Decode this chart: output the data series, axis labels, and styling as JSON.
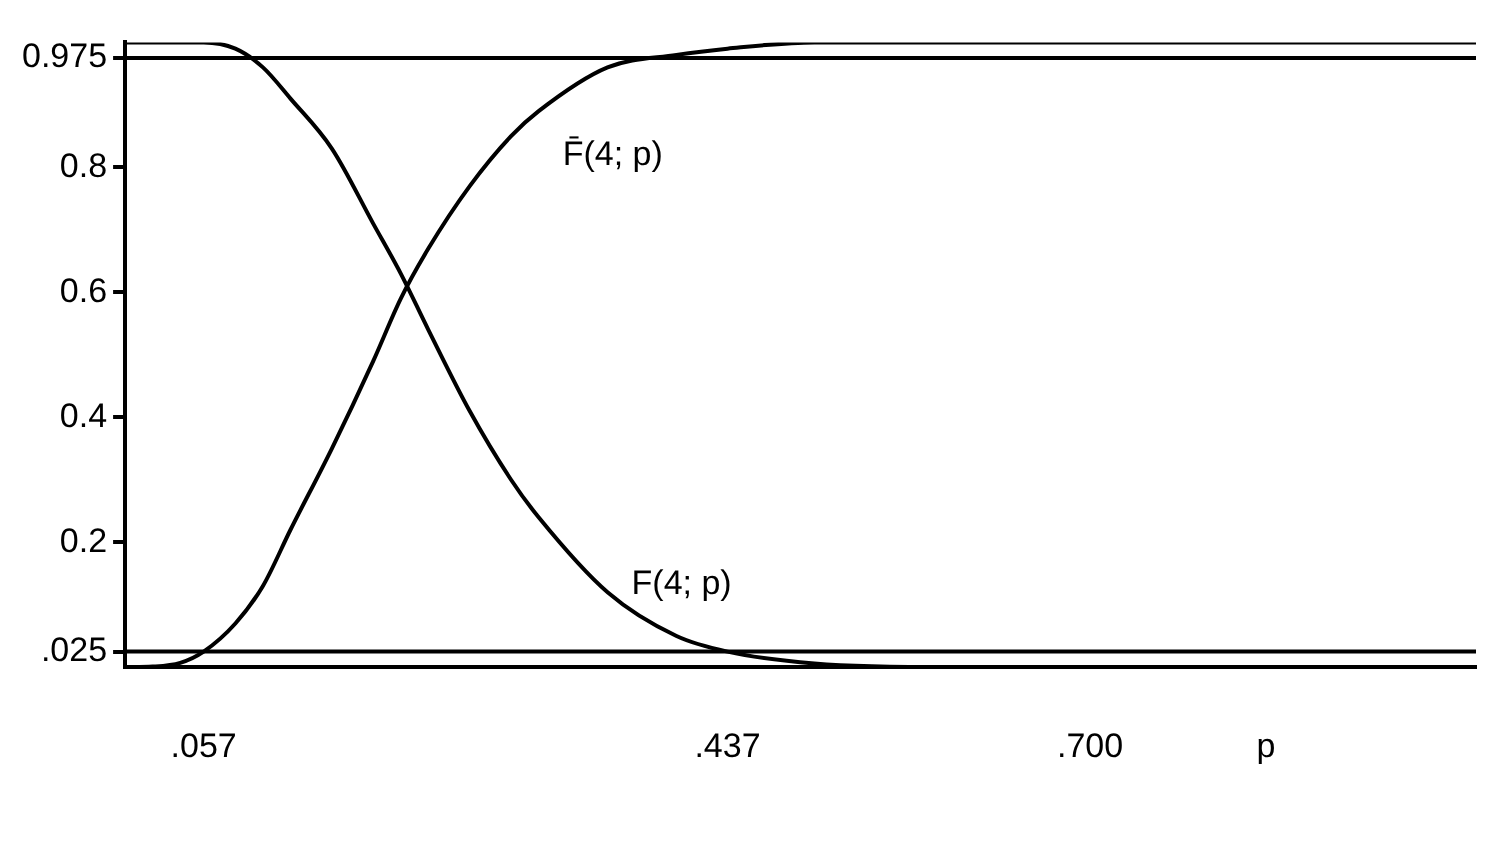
{
  "chart_data": {
    "type": "line",
    "xlabel": "p",
    "x": [
      0,
      0.02,
      0.04,
      0.057,
      0.08,
      0.1,
      0.12,
      0.15,
      0.18,
      0.2,
      0.22,
      0.25,
      0.28,
      0.3,
      0.35,
      0.4,
      0.437,
      0.5,
      0.6,
      0.7,
      0.8,
      0.9,
      0.98
    ],
    "series": [
      {
        "name": "F̄(4; p)",
        "color": "#000000",
        "values": [
          0,
          0.001,
          0.007,
          0.025,
          0.07,
          0.13,
          0.22,
          0.35,
          0.49,
          0.59,
          0.67,
          0.77,
          0.85,
          0.89,
          0.96,
          0.98,
          0.99,
          1,
          1,
          1,
          1,
          1,
          1
        ]
      },
      {
        "name": "F(4; p)",
        "color": "#000000",
        "values": [
          1,
          1,
          1,
          1,
          0.99,
          0.96,
          0.91,
          0.83,
          0.71,
          0.63,
          0.54,
          0.41,
          0.3,
          0.24,
          0.12,
          0.05,
          0.025,
          0.006,
          0,
          0,
          0,
          0,
          0
        ]
      }
    ],
    "xlim": [
      0,
      0.98
    ],
    "ylim": [
      0,
      1
    ],
    "xticks": [
      {
        "value": 0.057,
        "label": ".057"
      },
      {
        "value": 0.437,
        "label": ".437"
      },
      {
        "value": 0.7,
        "label": ".700"
      }
    ],
    "yticks": [
      {
        "value": 0.025,
        "label": ".025"
      },
      0.2,
      0.4,
      0.6,
      0.8,
      0.975
    ],
    "ref_lines": [
      {
        "axis": "y",
        "value": 0.025,
        "color": "#000000"
      },
      {
        "axis": "y",
        "value": 0.975,
        "color": "#000000"
      }
    ],
    "grid": false,
    "legend": false,
    "marker": "none",
    "line_style": "solid"
  }
}
